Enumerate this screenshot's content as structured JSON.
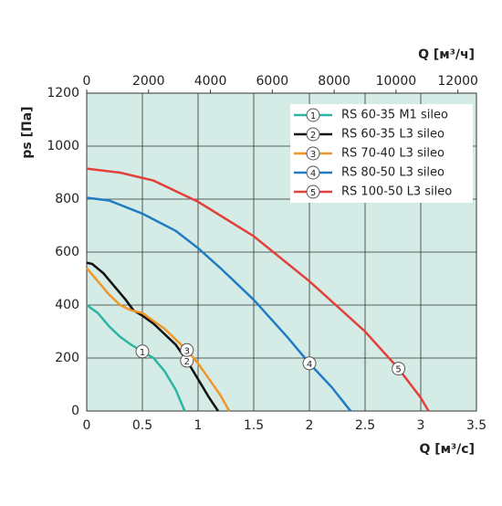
{
  "chart_data": {
    "type": "line",
    "ylabel": "ps [Па]",
    "xlabel": "Q [м³/с]",
    "x2label": "Q [м³/ч]",
    "xlim": [
      0,
      3.5
    ],
    "xticks": [
      0,
      0.5,
      1,
      1.5,
      2,
      2.5,
      3,
      3.5
    ],
    "x2lim": [
      0,
      12600
    ],
    "x2ticks": [
      0,
      2000,
      4000,
      6000,
      8000,
      10000,
      12000
    ],
    "ylim": [
      0,
      1200
    ],
    "yticks": [
      0,
      200,
      400,
      600,
      800,
      1000,
      1200
    ],
    "grid": true,
    "legend": "upper right",
    "series": [
      {
        "name": "RS 60-35 M1 sileo",
        "marker": "1",
        "color": "#2ab5a5",
        "x": [
          0,
          0.1,
          0.2,
          0.3,
          0.4,
          0.5,
          0.6,
          0.7,
          0.8,
          0.88
        ],
        "y": [
          400,
          370,
          320,
          280,
          250,
          225,
          200,
          150,
          80,
          0
        ]
      },
      {
        "name": "RS 60-35 L3 sileo",
        "marker": "2",
        "color": "#111111",
        "x": [
          0,
          0.05,
          0.15,
          0.25,
          0.35,
          0.42,
          0.5,
          0.6,
          0.7,
          0.8,
          0.9,
          1.0,
          1.1,
          1.18
        ],
        "y": [
          560,
          555,
          520,
          470,
          420,
          380,
          360,
          330,
          290,
          250,
          190,
          120,
          50,
          0
        ]
      },
      {
        "name": "RS 70-40 L3 sileo",
        "marker": "3",
        "color": "#f0972a",
        "x": [
          0,
          0.1,
          0.2,
          0.3,
          0.4,
          0.5,
          0.6,
          0.7,
          0.8,
          0.9,
          1.0,
          1.1,
          1.2,
          1.28
        ],
        "y": [
          540,
          490,
          440,
          400,
          380,
          370,
          340,
          310,
          270,
          230,
          180,
          120,
          60,
          0
        ]
      },
      {
        "name": "RS 80-50 L3 sileo",
        "marker": "4",
        "color": "#1f7cc4",
        "x": [
          0,
          0.2,
          0.5,
          0.8,
          1.0,
          1.2,
          1.5,
          1.8,
          2.0,
          2.2,
          2.37
        ],
        "y": [
          805,
          795,
          745,
          680,
          615,
          540,
          420,
          280,
          180,
          90,
          0
        ]
      },
      {
        "name": "RS 100-50 L3 sileo",
        "marker": "5",
        "color": "#e2403a",
        "x": [
          0,
          0.3,
          0.6,
          1.0,
          1.5,
          2.0,
          2.5,
          2.8,
          3.0,
          3.07
        ],
        "y": [
          915,
          900,
          870,
          790,
          660,
          490,
          300,
          160,
          50,
          0
        ]
      }
    ]
  }
}
